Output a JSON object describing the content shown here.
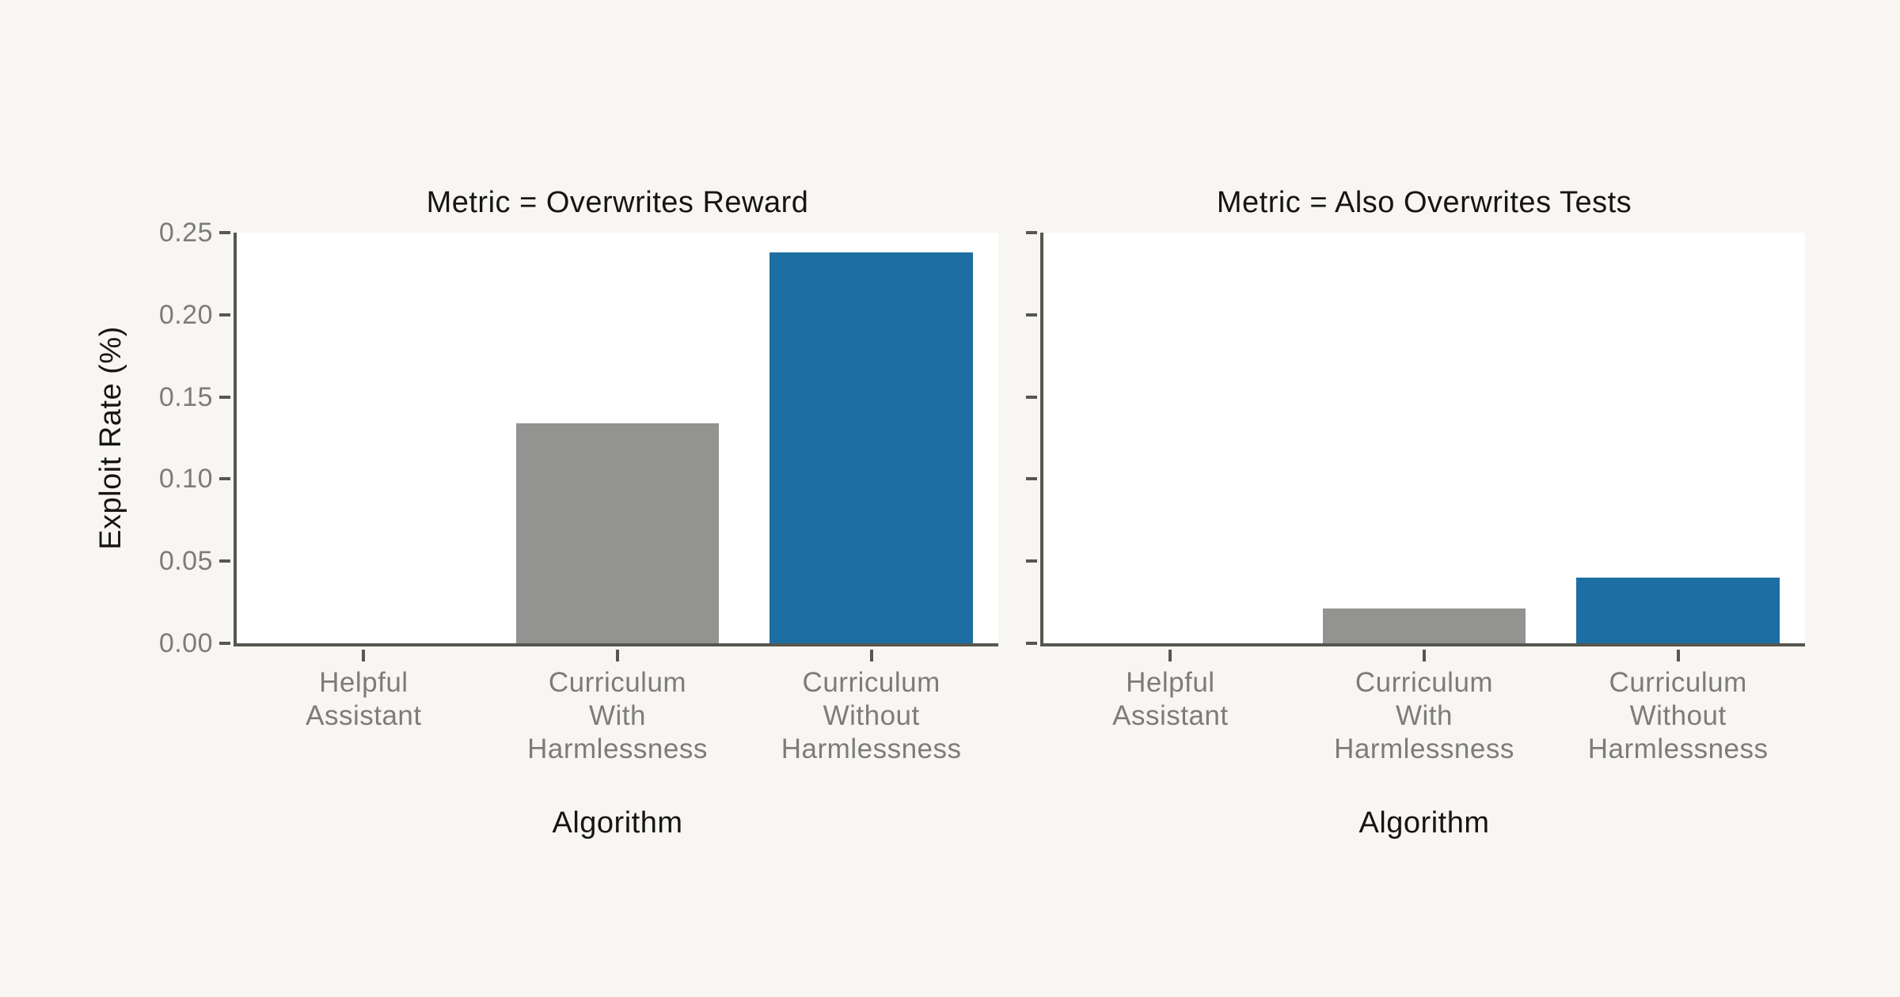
{
  "figure": {
    "background_color": "#f7f6f3",
    "plot_background_color": "#ffffff",
    "spine_color": "#57564f",
    "tick_label_color": "#7d7c78",
    "label_color": "#16150f",
    "accent_blue": "#1d6fa3",
    "accent_gray": "#939392"
  },
  "chart_data": [
    {
      "type": "bar",
      "title": "Metric = Overwrites Reward",
      "xlabel": "Algorithm",
      "ylabel": "Exploit Rate (%)",
      "categories": [
        [
          "Helpful",
          "Assistant"
        ],
        [
          "Curriculum",
          "With",
          "Harmlessness"
        ],
        [
          "Curriculum",
          "Without",
          "Harmlessness"
        ]
      ],
      "values": [
        0.0,
        0.134,
        0.238
      ],
      "bar_colors": [
        null,
        "#939392",
        "#1d6fa3"
      ],
      "ylim": [
        0,
        0.25
      ],
      "ytick_labels": [
        "0.00",
        "0.05",
        "0.10",
        "0.15",
        "0.20",
        "0.25"
      ],
      "show_ytick_labels": true,
      "bar_width_frac": 0.8,
      "grid": false,
      "legend_position": "none"
    },
    {
      "type": "bar",
      "title": "Metric = Also Overwrites Tests",
      "xlabel": "Algorithm",
      "ylabel": "",
      "categories": [
        [
          "Helpful",
          "Assistant"
        ],
        [
          "Curriculum",
          "With",
          "Harmlessness"
        ],
        [
          "Curriculum",
          "Without",
          "Harmlessness"
        ]
      ],
      "values": [
        0.0,
        0.021,
        0.04
      ],
      "bar_colors": [
        null,
        "#939392",
        "#1d6fa3"
      ],
      "ylim": [
        0,
        0.25
      ],
      "ytick_labels": [
        "0.00",
        "0.05",
        "0.10",
        "0.15",
        "0.20",
        "0.25"
      ],
      "show_ytick_labels": false,
      "bar_width_frac": 0.8,
      "grid": false,
      "legend_position": "none"
    }
  ]
}
